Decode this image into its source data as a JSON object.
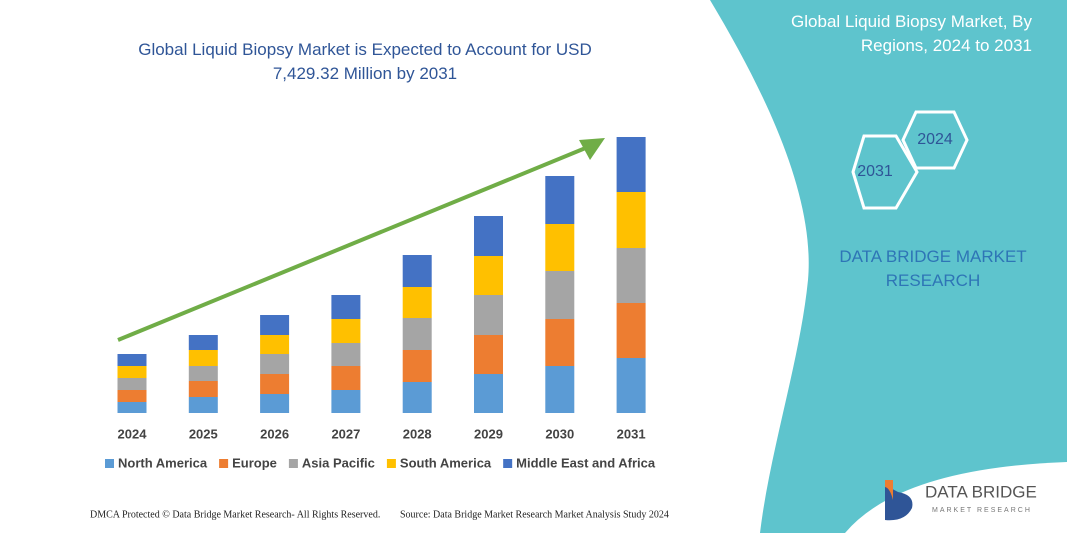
{
  "chart_data": {
    "type": "stacked_bar",
    "title": "Global Liquid Biopsy Market is Expected to Account for USD 7,429.32 Million by 2031",
    "categories": [
      "2024",
      "2025",
      "2026",
      "2027",
      "2028",
      "2029",
      "2030",
      "2031"
    ],
    "series": [
      {
        "name": "North America",
        "color": "#5b9bd5",
        "values": [
          11,
          16,
          19,
          23,
          31,
          39,
          47,
          55
        ]
      },
      {
        "name": "Europe",
        "color": "#ed7d31",
        "values": [
          12,
          16,
          20,
          24,
          32,
          39,
          47,
          55
        ]
      },
      {
        "name": "Asia Pacific",
        "color": "#a5a5a5",
        "values": [
          12,
          15,
          20,
          23,
          32,
          40,
          48,
          55
        ]
      },
      {
        "name": "South America",
        "color": "#ffc000",
        "values": [
          12,
          16,
          19,
          24,
          31,
          39,
          47,
          56
        ]
      },
      {
        "name": "Middle East and Africa",
        "color": "#4472c4",
        "values": [
          12,
          15,
          20,
          24,
          32,
          40,
          48,
          55
        ]
      }
    ],
    "ylim": [
      0,
      276
    ],
    "legend": "bottom",
    "trend_arrow_color": "#70ad47"
  },
  "panel": {
    "title": "Global Liquid Biopsy Market, By Regions, 2024 to 2031",
    "hexagons": [
      "2024",
      "2031"
    ],
    "brand": "DATA BRIDGE MARKET RESEARCH",
    "logo_name": "DATA BRIDGE",
    "logo_sub": "MARKET RESEARCH"
  },
  "footer": {
    "left": "DMCA Protected © Data Bridge Market Research- All Rights Reserved.",
    "right": "Source: Data Bridge Market Research  Market Analysis Study 2024"
  }
}
